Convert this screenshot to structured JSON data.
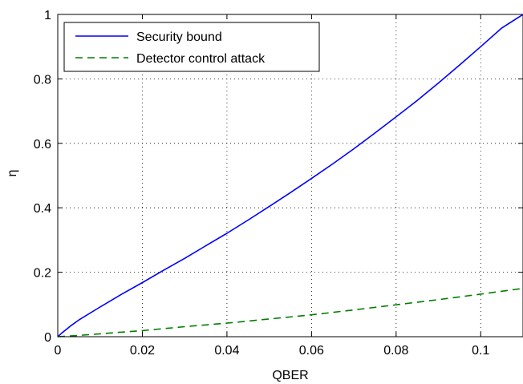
{
  "chart_data": {
    "type": "line",
    "title": "",
    "xlabel": "QBER",
    "ylabel": "η",
    "xlim": [
      0,
      0.11
    ],
    "ylim": [
      0,
      1
    ],
    "grid": true,
    "legend_position": "top-left",
    "x_ticks": [
      0,
      0.02,
      0.04,
      0.06,
      0.08,
      0.1
    ],
    "x_tick_labels": [
      "0",
      "0.02",
      "0.04",
      "0.06",
      "0.08",
      "0.1"
    ],
    "y_ticks": [
      0,
      0.2,
      0.4,
      0.6,
      0.8,
      1
    ],
    "y_tick_labels": [
      "0",
      "0.2",
      "0.4",
      "0.6",
      "0.8",
      "1"
    ],
    "series": [
      {
        "name": "Security bound",
        "color": "#0000ff",
        "style": "solid",
        "x": [
          0,
          0.001,
          0.003,
          0.005,
          0.01,
          0.015,
          0.02,
          0.025,
          0.03,
          0.035,
          0.04,
          0.045,
          0.05,
          0.055,
          0.06,
          0.065,
          0.07,
          0.075,
          0.08,
          0.085,
          0.09,
          0.095,
          0.1,
          0.105,
          0.11
        ],
        "y": [
          0,
          0.012,
          0.033,
          0.052,
          0.092,
          0.131,
          0.168,
          0.206,
          0.243,
          0.282,
          0.321,
          0.362,
          0.404,
          0.447,
          0.491,
          0.536,
          0.583,
          0.632,
          0.682,
          0.733,
          0.787,
          0.843,
          0.9,
          0.958,
          1.0
        ]
      },
      {
        "name": "Detector control attack",
        "color": "#007f00",
        "style": "dashed",
        "x": [
          0,
          0.005,
          0.01,
          0.02,
          0.03,
          0.04,
          0.05,
          0.06,
          0.07,
          0.08,
          0.09,
          0.1,
          0.11
        ],
        "y": [
          0,
          0.004,
          0.009,
          0.019,
          0.031,
          0.042,
          0.055,
          0.068,
          0.083,
          0.099,
          0.115,
          0.132,
          0.15
        ]
      }
    ]
  }
}
